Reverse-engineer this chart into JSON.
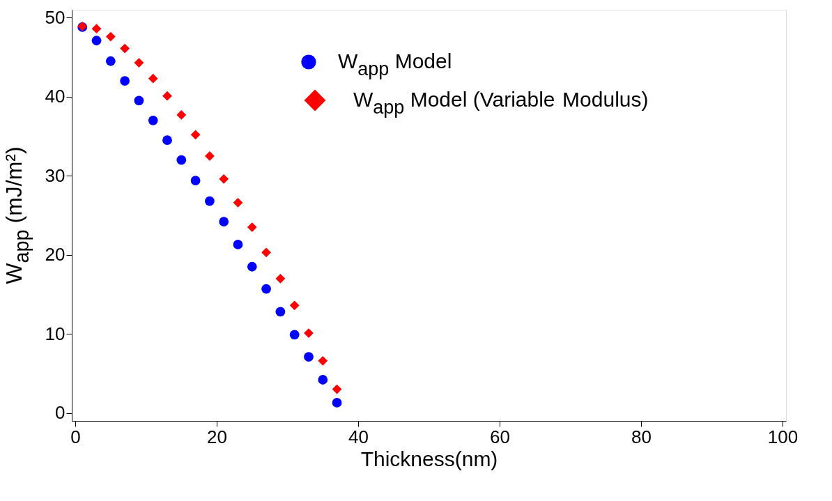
{
  "chart_data": {
    "type": "scatter",
    "xlabel": "Thickness(nm)",
    "ylabel": "W$_{app}$ (mJ/m²)",
    "x": [
      1,
      3,
      5,
      7,
      9,
      11,
      13,
      15,
      17,
      19,
      21,
      23,
      25,
      27,
      29,
      31,
      33,
      35,
      37
    ],
    "series": [
      {
        "name": "W$_{app}$ Model",
        "color": "#0000ff",
        "marker": "circle",
        "values": [
          48.8,
          47.1,
          44.5,
          42.0,
          39.5,
          37.0,
          34.5,
          32.0,
          29.4,
          26.8,
          24.2,
          21.3,
          18.5,
          15.7,
          12.8,
          9.9,
          7.1,
          4.2,
          1.3
        ]
      },
      {
        "name": "W$_{app}$ Model (Variable Modulus)",
        "color": "#ff0000",
        "marker": "diamond",
        "values": [
          48.9,
          48.6,
          47.6,
          46.1,
          44.3,
          42.3,
          40.1,
          37.7,
          35.2,
          32.5,
          29.6,
          26.6,
          23.5,
          20.3,
          17.0,
          13.6,
          10.1,
          6.6,
          3.0
        ]
      }
    ],
    "xlim": [
      -0.5,
      100.5
    ],
    "ylim": [
      -1,
      51
    ],
    "xticks": [
      0,
      20,
      40,
      60,
      80,
      100
    ],
    "yticks": [
      0,
      10,
      20,
      30,
      40,
      50
    ],
    "grid": false,
    "legend": "top"
  }
}
